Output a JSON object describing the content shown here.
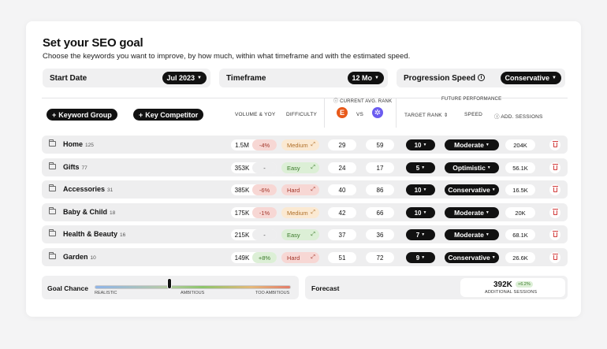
{
  "header": {
    "title": "Set your SEO goal",
    "subtitle": "Choose the keywords you want to improve, by how much, within what timeframe and with the estimated speed."
  },
  "selectors": {
    "start_date": {
      "label": "Start Date",
      "value": "Jul 2023"
    },
    "timeframe": {
      "label": "Timeframe",
      "value": "12 Mo"
    },
    "progression": {
      "label": "Progression Speed",
      "value": "Conservative"
    }
  },
  "toolbar": {
    "keyword_group": "Keyword Group",
    "key_competitor": "Key Competitor"
  },
  "columns": {
    "volume": "VOLUME & YOY",
    "difficulty": "DIFFICULTY",
    "current_rank": "CURRENT AVG. RANK",
    "vs": "VS",
    "future": "FUTURE PERFORMANCE",
    "target_rank": "TARGET RANK",
    "speed": "SPEED",
    "sessions": "ADD. SESSIONS"
  },
  "rows": [
    {
      "name": "Home",
      "count": "125",
      "volume": "1.5M",
      "yoy": "-4%",
      "yoy_tone": "red",
      "difficulty": "Medium",
      "diff_tone": "orange",
      "rank_a": "29",
      "rank_b": "59",
      "target": "10",
      "speed": "Moderate",
      "sessions": "204K"
    },
    {
      "name": "Gifts",
      "count": "77",
      "volume": "353K",
      "yoy": "-",
      "yoy_tone": "neutral",
      "difficulty": "Easy",
      "diff_tone": "green",
      "rank_a": "24",
      "rank_b": "17",
      "target": "5",
      "speed": "Optimistic",
      "sessions": "56.1K"
    },
    {
      "name": "Accessories",
      "count": "31",
      "volume": "385K",
      "yoy": "-6%",
      "yoy_tone": "red",
      "difficulty": "Hard",
      "diff_tone": "red",
      "rank_a": "40",
      "rank_b": "86",
      "target": "10",
      "speed": "Conservative",
      "sessions": "16.5K"
    },
    {
      "name": "Baby & Child",
      "count": "18",
      "volume": "175K",
      "yoy": "-1%",
      "yoy_tone": "red",
      "difficulty": "Medium",
      "diff_tone": "orange",
      "rank_a": "42",
      "rank_b": "66",
      "target": "10",
      "speed": "Moderate",
      "sessions": "20K"
    },
    {
      "name": "Health & Beauty",
      "count": "16",
      "volume": "215K",
      "yoy": "-",
      "yoy_tone": "neutral",
      "difficulty": "Easy",
      "diff_tone": "green",
      "rank_a": "37",
      "rank_b": "36",
      "target": "7",
      "speed": "Moderate",
      "sessions": "68.1K"
    },
    {
      "name": "Garden",
      "count": "10",
      "volume": "149K",
      "yoy": "+8%",
      "yoy_tone": "green",
      "difficulty": "Hard",
      "diff_tone": "red",
      "rank_a": "51",
      "rank_b": "72",
      "target": "9",
      "speed": "Conservative",
      "sessions": "26.6K"
    }
  ],
  "goal": {
    "label": "Goal Chance",
    "scale": [
      "REALISTIC",
      "AMBITIOUS",
      "TOO AMBITIOUS"
    ],
    "level": 0.38
  },
  "forecast": {
    "label": "Forecast",
    "value": "392K",
    "change": "+6.2%",
    "caption": "ADDITIONAL SESSIONS"
  },
  "competitors": {
    "a_letter": "E",
    "a_color": "#e8591a",
    "b_color": "#6b5cf0"
  },
  "icons": {
    "folder": "folder-icon",
    "delete": "trash-icon",
    "caret": "caret-down-icon",
    "info": "info-icon"
  }
}
